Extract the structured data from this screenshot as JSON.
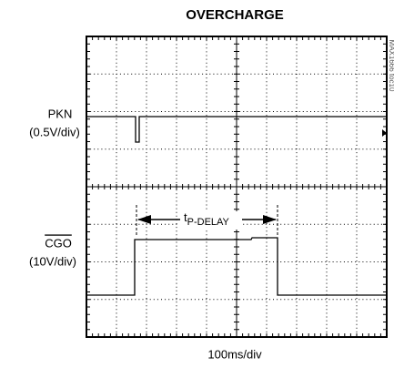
{
  "title": "OVERCHARGE",
  "channels": [
    {
      "name": "PKN",
      "scale": "(0.5V/div)"
    },
    {
      "name": "CGO",
      "scale": "(10V/div)"
    }
  ],
  "delay_label": {
    "symbol": "t",
    "subscript": "P-DELAY"
  },
  "time_scale": "100ms/div",
  "figure_id": "MAX1666 toc10"
}
